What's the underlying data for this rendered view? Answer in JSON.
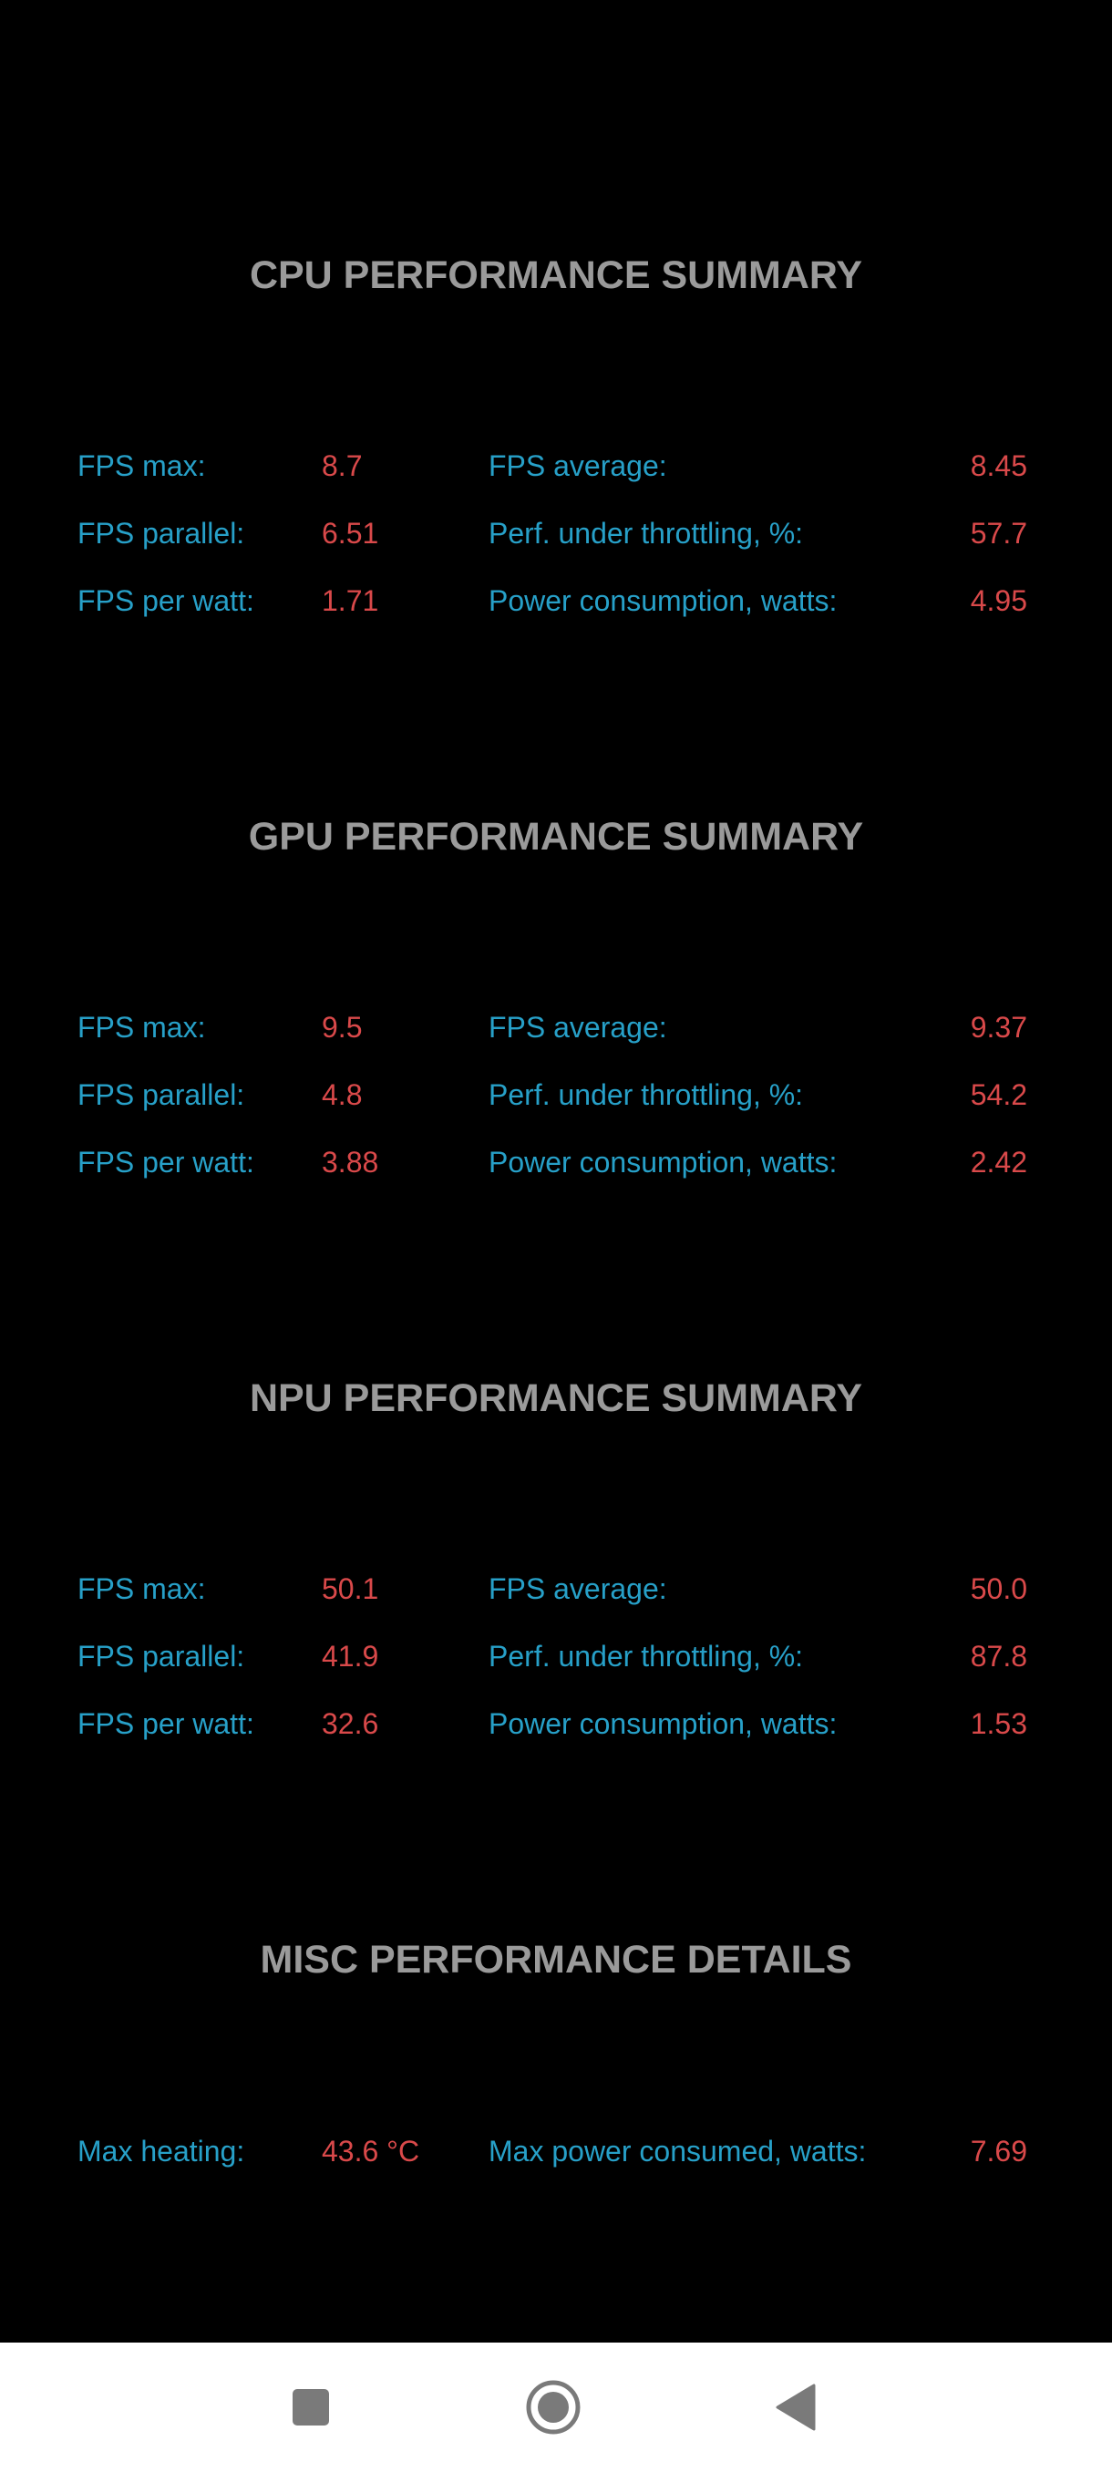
{
  "sections": [
    {
      "title": "CPU PERFORMANCE SUMMARY",
      "rows": [
        {
          "l1": "FPS max:",
          "v1": "8.7",
          "l2": "FPS average:",
          "v2": "8.45"
        },
        {
          "l1": "FPS parallel:",
          "v1": "6.51",
          "l2": "Perf. under throttling, %:",
          "v2": "57.7"
        },
        {
          "l1": "FPS per watt:",
          "v1": "1.71",
          "l2": "Power consumption, watts:",
          "v2": "4.95"
        }
      ]
    },
    {
      "title": "GPU PERFORMANCE SUMMARY",
      "rows": [
        {
          "l1": "FPS max:",
          "v1": "9.5",
          "l2": "FPS average:",
          "v2": "9.37"
        },
        {
          "l1": "FPS parallel:",
          "v1": "4.8",
          "l2": "Perf. under throttling, %:",
          "v2": "54.2"
        },
        {
          "l1": "FPS per watt:",
          "v1": "3.88",
          "l2": "Power consumption, watts:",
          "v2": "2.42"
        }
      ]
    },
    {
      "title": "NPU PERFORMANCE SUMMARY",
      "rows": [
        {
          "l1": "FPS max:",
          "v1": "50.1",
          "l2": "FPS average:",
          "v2": "50.0"
        },
        {
          "l1": "FPS parallel:",
          "v1": "41.9",
          "l2": "Perf. under throttling, %:",
          "v2": "87.8"
        },
        {
          "l1": "FPS per watt:",
          "v1": "32.6",
          "l2": "Power consumption, watts:",
          "v2": "1.53"
        }
      ]
    },
    {
      "title": "MISC PERFORMANCE DETAILS",
      "rows": [
        {
          "l1": "Max heating:",
          "v1": "43.6 °C",
          "l2": "Max power consumed, watts:",
          "v2": "7.69"
        }
      ]
    }
  ],
  "navbar": {
    "buttons": [
      "recent-apps",
      "home",
      "back"
    ],
    "icon_color": "#7a7a7a",
    "background": "#ffffff"
  },
  "colors": {
    "background": "#000000",
    "title": "#9a9a9a",
    "label": "#27a0c8",
    "value": "#d9494a"
  }
}
